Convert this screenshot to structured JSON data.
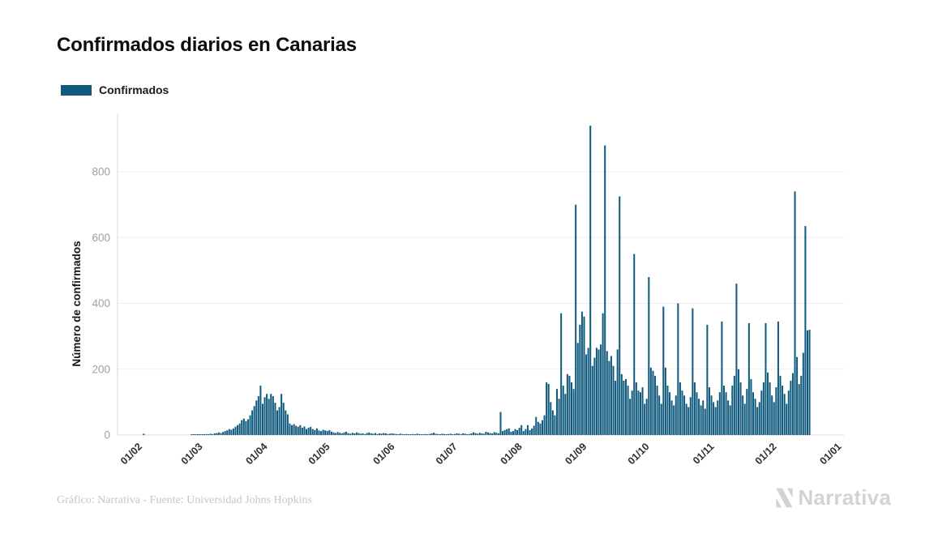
{
  "header": {
    "title": "Confirmados diarios en Canarias"
  },
  "legend": {
    "items": [
      {
        "label": "Confirmados",
        "color": "#0f5a7d"
      }
    ]
  },
  "footer": {
    "credit": "Gráfico: Narrativa - Fuente: Universidad Johns Hopkins"
  },
  "brand": {
    "name": "Narrativa"
  },
  "colors": {
    "bar": "#0f5a7d",
    "grid": "#ededed",
    "axis": "#d9d9d9",
    "y_tick_text": "#9f9f9f",
    "x_tick_text": "#2e2e2e",
    "footer_text": "#c6c6c6",
    "brand_gray": "#d3d3d3"
  },
  "chart_data": {
    "type": "bar",
    "title": "Confirmados diarios en Canarias",
    "series_name": "Confirmados",
    "xlabel": "",
    "ylabel": "Número de confirmados",
    "bar_color": "#0f5a7d",
    "ylim": [
      0,
      950
    ],
    "y_ticks": [
      0,
      200,
      400,
      600,
      800
    ],
    "grid": "horizontal",
    "legend_position": "top-left",
    "start_date": "2020-01-20",
    "domain_days": 348,
    "x_tick_labels": [
      "01/02",
      "01/03",
      "01/04",
      "01/05",
      "01/06",
      "01/07",
      "01/08",
      "01/09",
      "01/10",
      "01/11",
      "01/12",
      "01/01"
    ],
    "x_tick_day_indices": [
      12,
      41,
      72,
      102,
      133,
      163,
      194,
      225,
      255,
      286,
      316,
      347
    ],
    "values": [
      0,
      0,
      0,
      0,
      0,
      0,
      0,
      0,
      0,
      0,
      0,
      0,
      4,
      0,
      0,
      0,
      0,
      0,
      0,
      0,
      0,
      0,
      0,
      0,
      0,
      0,
      0,
      0,
      0,
      0,
      0,
      0,
      0,
      0,
      0,
      1,
      2,
      1,
      2,
      1,
      2,
      2,
      3,
      2,
      4,
      3,
      5,
      6,
      8,
      6,
      9,
      12,
      14,
      18,
      16,
      20,
      25,
      30,
      35,
      45,
      50,
      42,
      48,
      60,
      75,
      88,
      105,
      118,
      150,
      95,
      115,
      125,
      110,
      125,
      118,
      98,
      75,
      85,
      125,
      98,
      75,
      63,
      35,
      30,
      33,
      28,
      25,
      30,
      22,
      26,
      18,
      22,
      25,
      18,
      15,
      20,
      14,
      12,
      16,
      14,
      12,
      15,
      10,
      8,
      6,
      9,
      7,
      5,
      8,
      10,
      6,
      4,
      7,
      5,
      8,
      6,
      4,
      5,
      3,
      6,
      8,
      5,
      4,
      6,
      3,
      5,
      4,
      6,
      5,
      3,
      4,
      5,
      4,
      3,
      2,
      4,
      3,
      2,
      3,
      1,
      2,
      3,
      2,
      4,
      3,
      2,
      1,
      3,
      2,
      3,
      5,
      7,
      4,
      3,
      2,
      4,
      3,
      2,
      3,
      4,
      2,
      3,
      5,
      4,
      3,
      5,
      4,
      2,
      3,
      5,
      8,
      6,
      4,
      7,
      5,
      4,
      10,
      8,
      6,
      5,
      9,
      7,
      5,
      70,
      12,
      15,
      18,
      20,
      10,
      12,
      18,
      15,
      22,
      30,
      12,
      18,
      30,
      15,
      20,
      28,
      55,
      40,
      35,
      45,
      60,
      160,
      155,
      100,
      75,
      60,
      140,
      110,
      370,
      150,
      125,
      185,
      180,
      160,
      140,
      700,
      280,
      335,
      375,
      360,
      245,
      265,
      940,
      210,
      235,
      265,
      260,
      275,
      370,
      880,
      255,
      225,
      240,
      210,
      165,
      260,
      725,
      185,
      165,
      170,
      150,
      110,
      135,
      550,
      160,
      135,
      130,
      145,
      95,
      110,
      480,
      205,
      195,
      180,
      150,
      120,
      95,
      390,
      205,
      150,
      130,
      105,
      90,
      120,
      400,
      160,
      135,
      120,
      95,
      85,
      115,
      385,
      160,
      130,
      110,
      90,
      105,
      80,
      335,
      145,
      120,
      100,
      85,
      105,
      130,
      345,
      150,
      130,
      105,
      90,
      150,
      180,
      460,
      200,
      160,
      120,
      95,
      140,
      340,
      170,
      130,
      110,
      85,
      100,
      135,
      160,
      340,
      190,
      160,
      120,
      100,
      145,
      345,
      180,
      150,
      125,
      95,
      135,
      165,
      188,
      740,
      237,
      155,
      180,
      250,
      635,
      318,
      320
    ]
  }
}
